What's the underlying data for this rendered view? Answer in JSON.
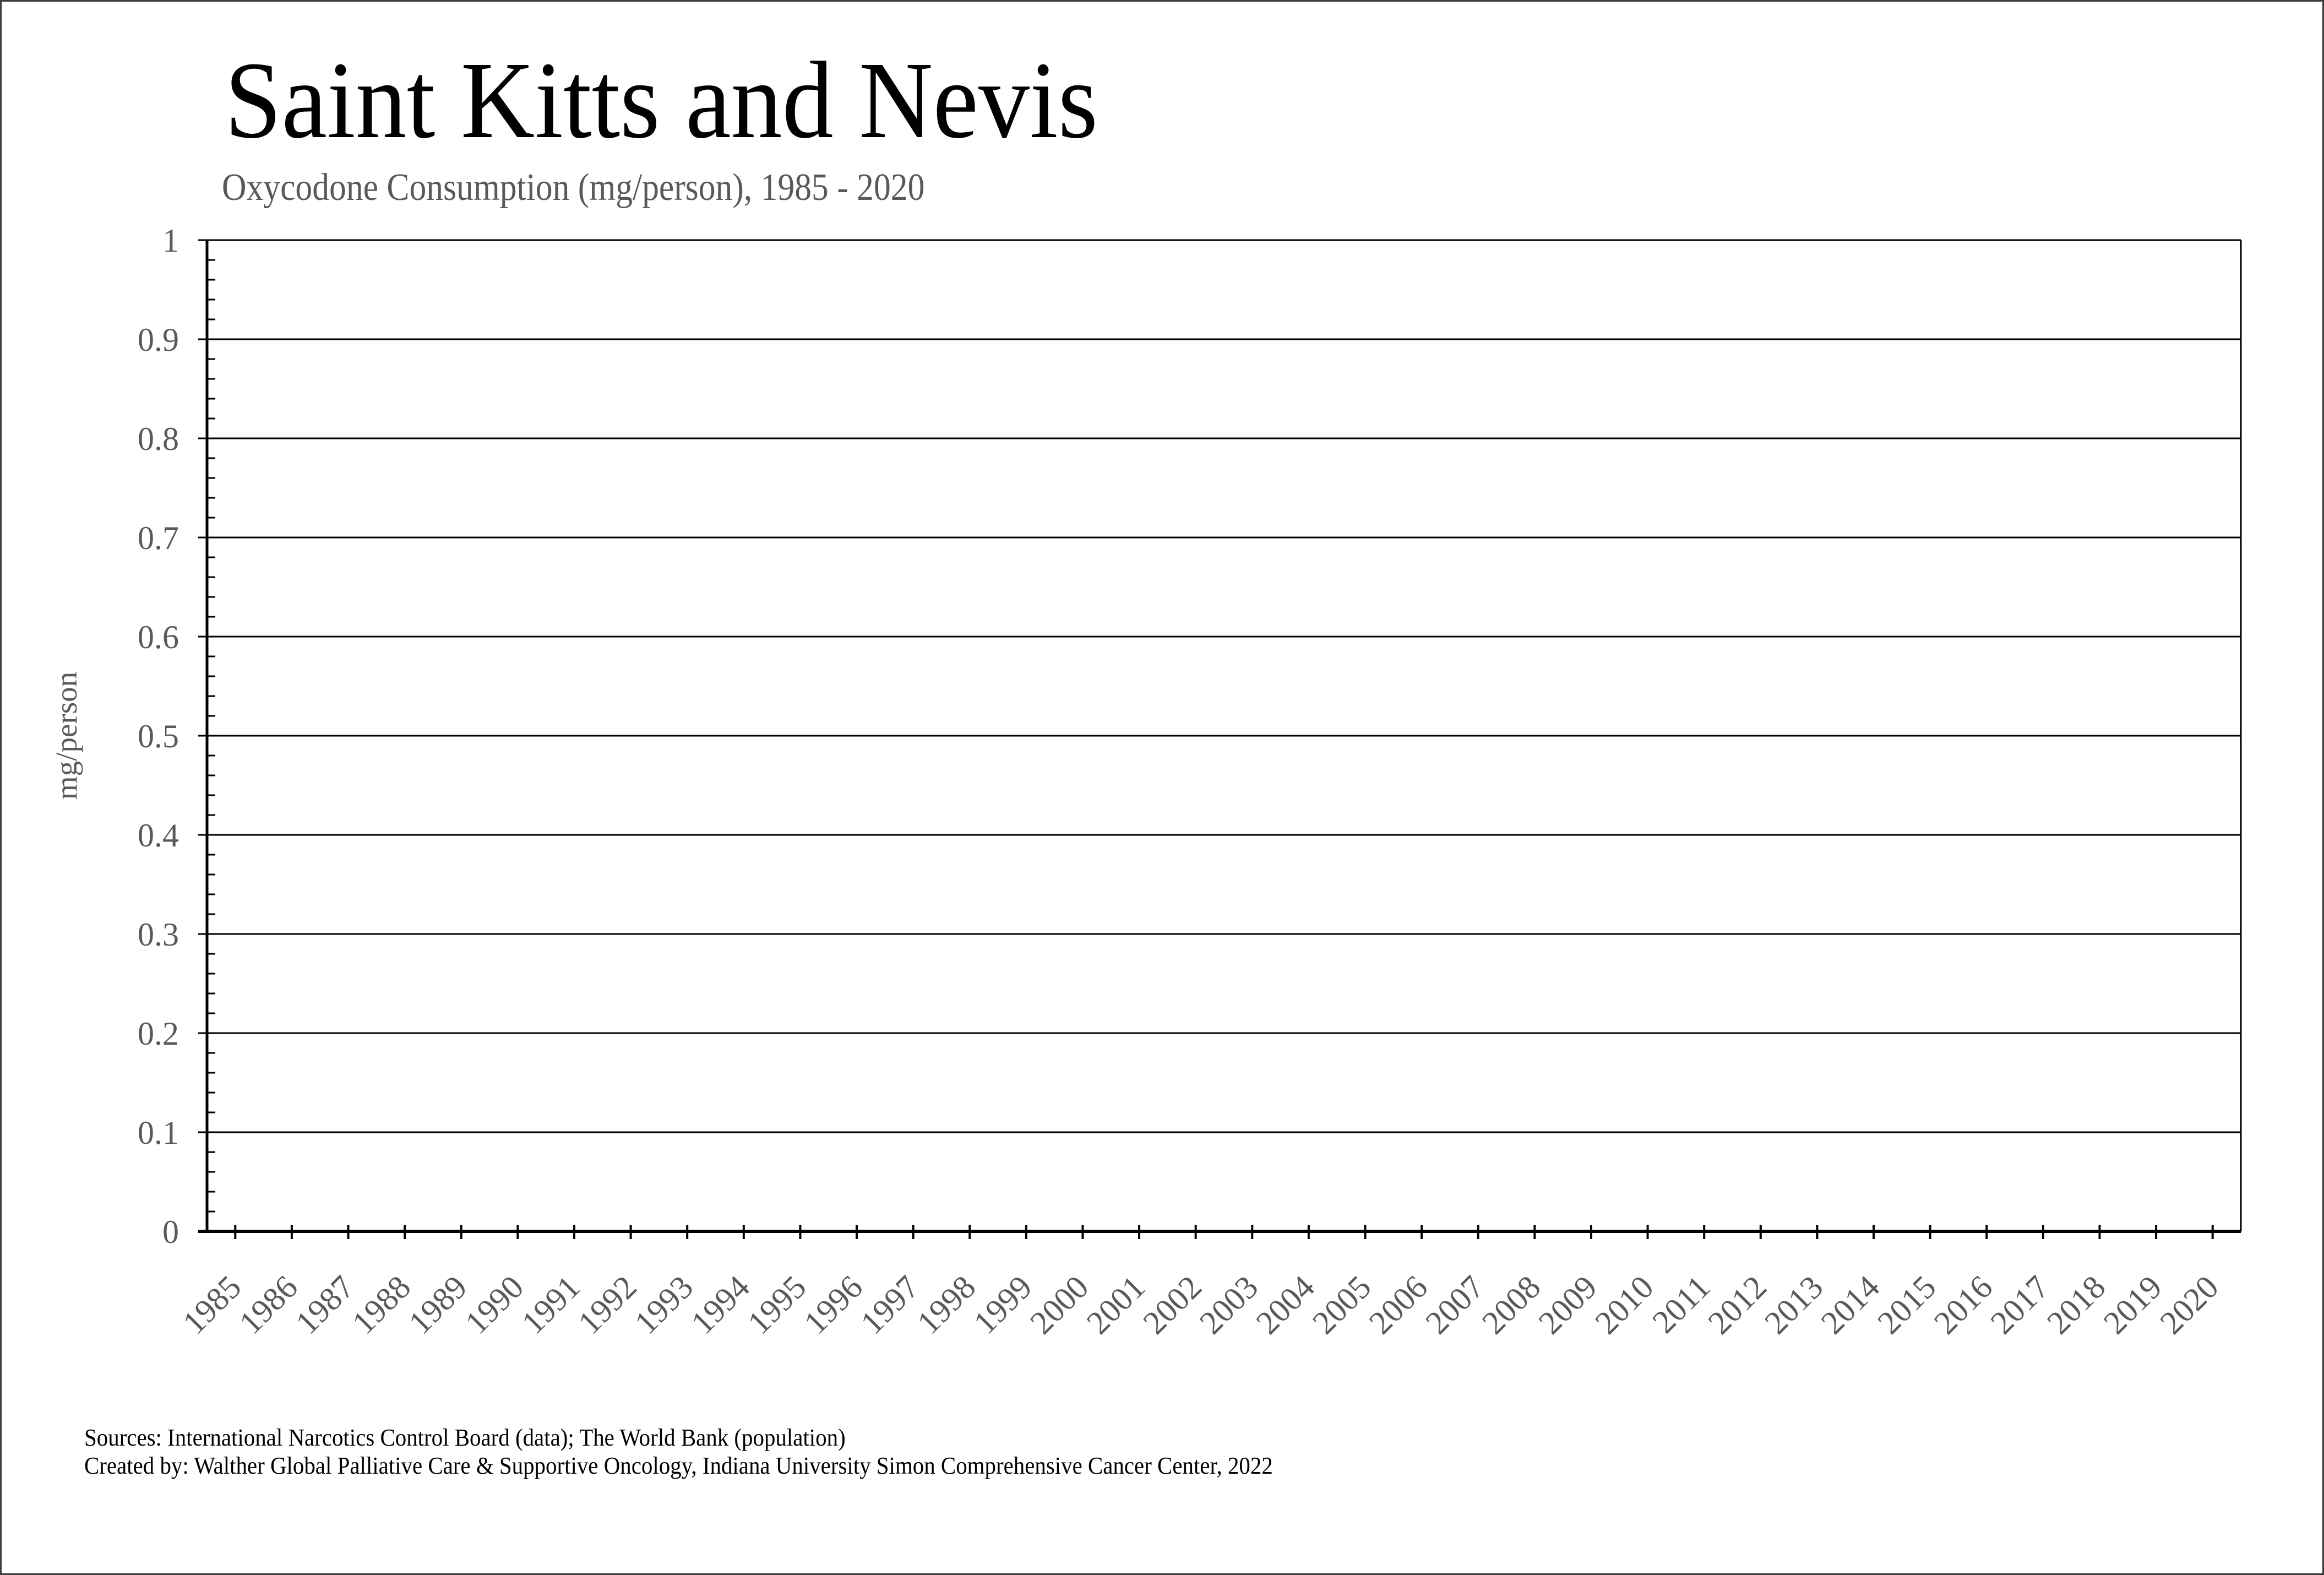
{
  "window": {
    "background": "#ffffff",
    "frame_color": "#3d3d3d"
  },
  "header": {
    "title": "Saint Kitts and Nevis",
    "subtitle": "Oxycodone Consumption (mg/person), 1985 - 2020",
    "title_color": "#000000",
    "subtitle_color": "#595959"
  },
  "chart_data": {
    "type": "line",
    "title": "Saint Kitts and Nevis",
    "subtitle": "Oxycodone Consumption (mg/person), 1985 - 2020",
    "xlabel": "",
    "ylabel": "mg/person",
    "ylim": [
      0,
      1
    ],
    "y_major_step": 0.1,
    "y_minor_step": 0.02,
    "y_tick_labels": [
      "0",
      "0.1",
      "0.2",
      "0.3",
      "0.4",
      "0.5",
      "0.6",
      "0.7",
      "0.8",
      "0.9",
      "1"
    ],
    "categories": [
      "1985",
      "1986",
      "1987",
      "1988",
      "1989",
      "1990",
      "1991",
      "1992",
      "1993",
      "1994",
      "1995",
      "1996",
      "1997",
      "1998",
      "1999",
      "2000",
      "2001",
      "2002",
      "2003",
      "2004",
      "2005",
      "2006",
      "2007",
      "2008",
      "2009",
      "2010",
      "2011",
      "2012",
      "2013",
      "2014",
      "2015",
      "2016",
      "2017",
      "2018",
      "2019",
      "2020"
    ],
    "series": [],
    "grid": "horizontal-major",
    "legend": "none",
    "x_tick_rotation_deg": 45,
    "axis_color": "#000000",
    "gridline_color": "#000000",
    "tick_label_color": "#595959"
  },
  "footer": {
    "line1": "Sources: International Narcotics Control Board (data); The World Bank (population)",
    "line2": "Created by: Walther Global Palliative Care & Supportive Oncology, Indiana University Simon Comprehensive Cancer Center, 2022",
    "text_color": "#000000"
  }
}
